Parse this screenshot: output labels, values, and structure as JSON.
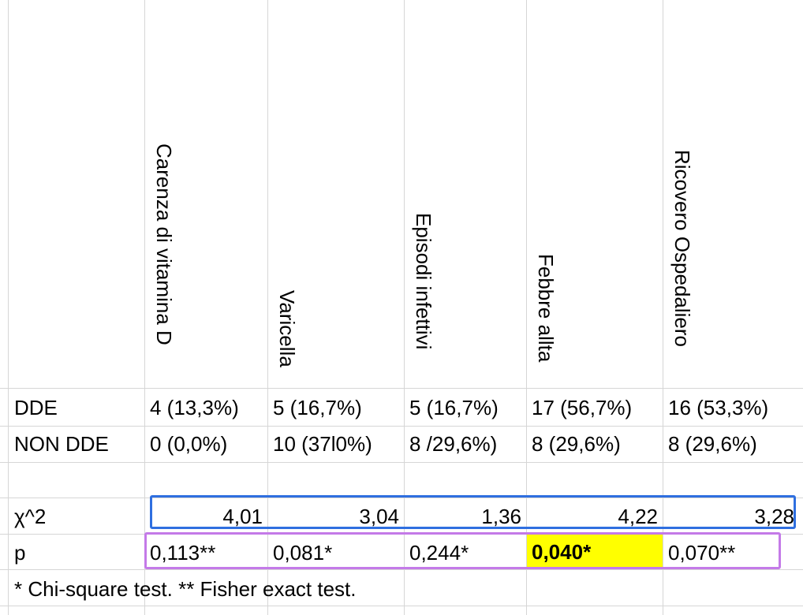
{
  "table": {
    "headers": [
      "Carenza di vitamina D",
      "Varicella",
      "Episodi infettivi",
      "Febbre allta",
      "Ricovero Ospedaliero"
    ],
    "rows": [
      {
        "label": "DDE",
        "values": [
          "4 (13,3%)",
          "5 (16,7%)",
          "5 (16,7%)",
          "17 (56,7%)",
          "16 (53,3%)"
        ]
      },
      {
        "label": "NON DDE",
        "values": [
          "0 (0,0%)",
          "10 (37l0%)",
          "8 /29,6%)",
          "8 (29,6%)",
          "8 (29,6%)"
        ]
      }
    ],
    "chi_row": {
      "label": "χ^2",
      "values": [
        "4,01",
        "3,04",
        "1,36",
        "4,22",
        "3,28"
      ]
    },
    "p_row": {
      "label": "p",
      "values": [
        "0,113**",
        "0,081*",
        "0,244*",
        "0,040*",
        "0,070**"
      ]
    },
    "highlighted_p_index": 3,
    "footnote": "* Chi-square test. ** Fisher exact test."
  },
  "colors": {
    "highlight": "#ffff00",
    "chi_box": "#2f6fe0",
    "p_box": "#c47ae8",
    "gridline": "#d6d6d6"
  }
}
